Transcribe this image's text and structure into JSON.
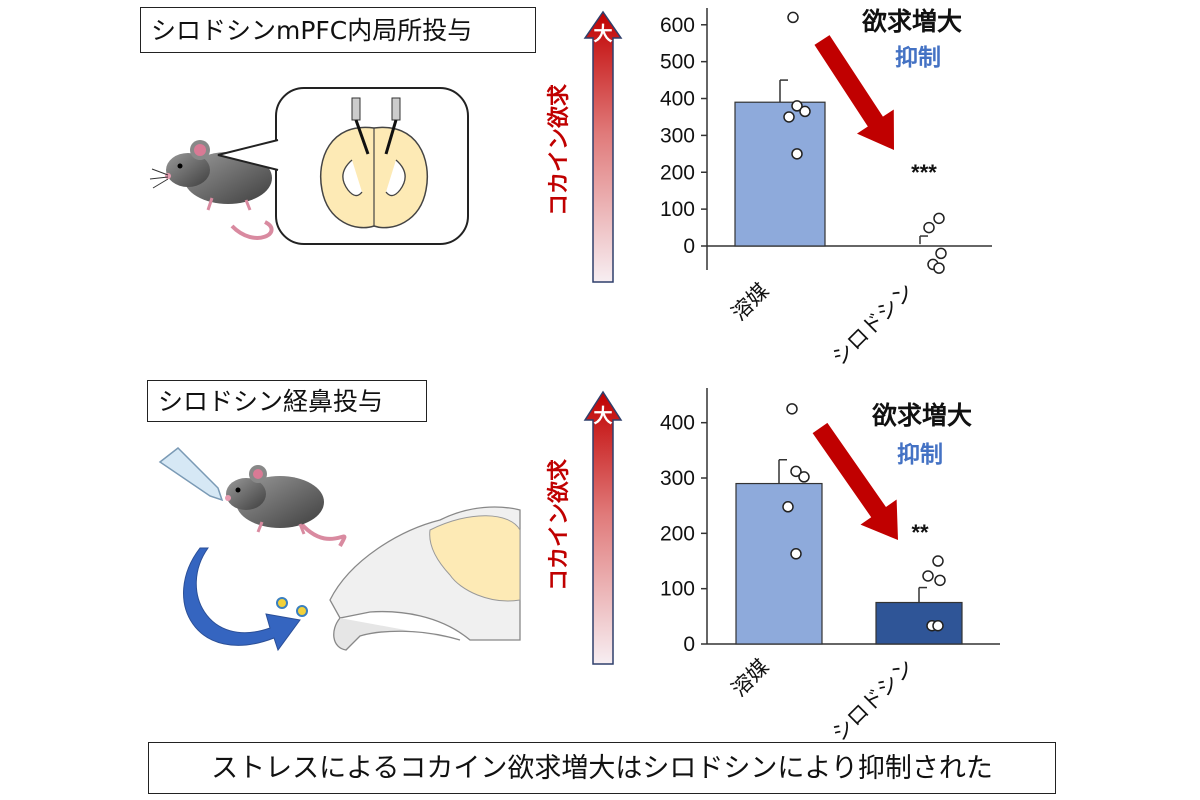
{
  "labels": {
    "top_box": "シロドシンmPFC内局所投与",
    "bottom_box": "シロドシン経鼻投与",
    "conclusion": "ストレスによるコカイン欲求増大はシロドシンにより抑制された"
  },
  "colors": {
    "vehicle_bar": "#8eaadb",
    "silodosin_bar_bottom": "#2f5597",
    "arrow_red": "#c00000",
    "subtitle_blue": "#4472c4",
    "mouse_gray": "#6b6b6b",
    "brain_fill": "#fdeab5"
  },
  "icons": [
    "mouse-icon",
    "brain-section-icon",
    "dropper-icon",
    "curved-arrow-icon",
    "nasal-anatomy-icon"
  ],
  "chart_data": [
    {
      "type": "bar",
      "categories": [
        "溶媒",
        "シロドシン"
      ],
      "values": [
        390,
        5
      ],
      "errors": [
        60,
        22
      ],
      "points": [
        [
          620,
          380,
          365,
          350,
          250
        ],
        [
          75,
          50,
          -20,
          -50,
          -60
        ]
      ],
      "ylim": [
        -60,
        640
      ],
      "yticks": [
        0,
        100,
        200,
        300,
        400,
        500,
        600
      ],
      "ylabel": "コカイン欲求",
      "arrow_top_label": "大",
      "annotation_main": "欲求増大",
      "annotation_sub": "抑制",
      "significance": "***"
    },
    {
      "type": "bar",
      "categories": [
        "溶媒",
        "シロドシン"
      ],
      "values": [
        290,
        75
      ],
      "errors": [
        43,
        27
      ],
      "points": [
        [
          425,
          312,
          302,
          248,
          163
        ],
        [
          150,
          123,
          115,
          33,
          33
        ]
      ],
      "ylim": [
        0,
        460
      ],
      "yticks": [
        0,
        100,
        200,
        300,
        400
      ],
      "ylabel": "コカイン欲求",
      "arrow_top_label": "大",
      "annotation_main": "欲求増大",
      "annotation_sub": "抑制",
      "significance": "**"
    }
  ]
}
